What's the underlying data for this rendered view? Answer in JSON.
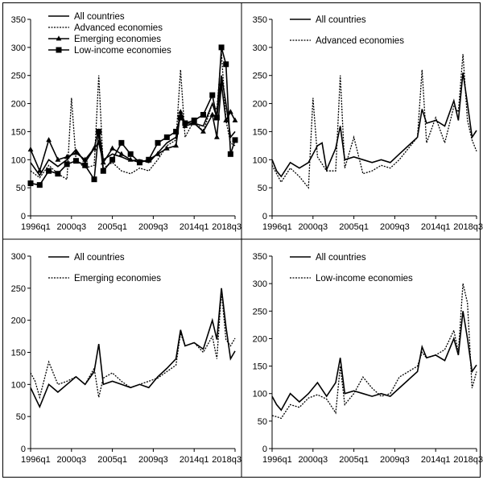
{
  "chart_data": [
    {
      "type": "line",
      "panel": "top-left",
      "ylim": [
        0,
        350
      ],
      "yticks": [
        0,
        50,
        100,
        150,
        200,
        250,
        300,
        350
      ],
      "xticks": [
        "1996q1",
        "2000q3",
        "2005q1",
        "2009q3",
        "2014q1",
        "2018q3"
      ],
      "legend_position": "top-left",
      "series": [
        {
          "name": "All countries",
          "style": "solid",
          "marker": "none",
          "x": [
            "1996q1",
            "1997q1",
            "1998q1",
            "1999q1",
            "2000q1",
            "2001q1",
            "2002q1",
            "2003q1",
            "2003q3",
            "2004q1",
            "2005q1",
            "2006q1",
            "2007q1",
            "2008q1",
            "2009q1",
            "2010q1",
            "2011q1",
            "2012q1",
            "2012q3",
            "2013q1",
            "2014q1",
            "2015q1",
            "2016q1",
            "2016q3",
            "2017q1",
            "2017q3",
            "2018q1",
            "2018q3"
          ],
          "y": [
            95,
            72,
            100,
            88,
            100,
            118,
            95,
            120,
            155,
            100,
            110,
            105,
            98,
            100,
            95,
            112,
            130,
            140,
            185,
            165,
            165,
            160,
            200,
            175,
            250,
            200,
            140,
            150
          ]
        },
        {
          "name": "Advanced economies",
          "style": "dotted",
          "marker": "none",
          "x": [
            "1996q1",
            "1997q1",
            "1998q1",
            "1999q1",
            "2000q1",
            "2000q3",
            "2001q1",
            "2002q1",
            "2003q1",
            "2003q3",
            "2004q1",
            "2005q1",
            "2006q1",
            "2007q1",
            "2008q1",
            "2009q1",
            "2010q1",
            "2011q1",
            "2012q1",
            "2012q3",
            "2013q1",
            "2014q1",
            "2015q1",
            "2016q1",
            "2016q3",
            "2017q1",
            "2017q3",
            "2018q1",
            "2018q3"
          ],
          "y": [
            80,
            68,
            90,
            75,
            65,
            210,
            100,
            85,
            90,
            250,
            85,
            95,
            80,
            75,
            85,
            80,
            100,
            125,
            135,
            260,
            140,
            170,
            150,
            200,
            190,
            290,
            170,
            130,
            125
          ]
        },
        {
          "name": "Emerging economies",
          "style": "solid",
          "marker": "triangle",
          "x": [
            "1996q1",
            "1997q1",
            "1998q1",
            "1999q1",
            "2000q1",
            "2001q1",
            "2002q1",
            "2003q1",
            "2003q3",
            "2004q1",
            "2005q1",
            "2006q1",
            "2007q1",
            "2008q1",
            "2009q1",
            "2010q1",
            "2011q1",
            "2012q1",
            "2012q3",
            "2013q1",
            "2014q1",
            "2015q1",
            "2016q1",
            "2016q3",
            "2017q1",
            "2017q3",
            "2018q1",
            "2018q3"
          ],
          "y": [
            118,
            80,
            135,
            100,
            105,
            112,
            100,
            120,
            130,
            95,
            120,
            110,
            100,
            95,
            100,
            110,
            120,
            125,
            185,
            160,
            165,
            150,
            180,
            140,
            235,
            170,
            185,
            170
          ]
        },
        {
          "name": "Low-income economies",
          "style": "solid",
          "marker": "square",
          "x": [
            "1996q1",
            "1997q1",
            "1998q1",
            "1999q1",
            "2000q1",
            "2001q1",
            "2002q1",
            "2003q1",
            "2003q3",
            "2004q1",
            "2005q1",
            "2006q1",
            "2007q1",
            "2008q1",
            "2009q1",
            "2010q1",
            "2011q1",
            "2012q1",
            "2012q3",
            "2013q1",
            "2014q1",
            "2015q1",
            "2016q1",
            "2016q3",
            "2017q1",
            "2017q3",
            "2018q1",
            "2018q3"
          ],
          "y": [
            58,
            55,
            80,
            75,
            92,
            98,
            90,
            65,
            150,
            80,
            100,
            130,
            110,
            95,
            100,
            130,
            140,
            150,
            175,
            165,
            170,
            180,
            215,
            175,
            300,
            270,
            110,
            135
          ]
        }
      ]
    },
    {
      "type": "line",
      "panel": "top-right",
      "ylim": [
        0,
        350
      ],
      "yticks": [
        0,
        50,
        100,
        150,
        200,
        250,
        300,
        350
      ],
      "xticks": [
        "1996q1",
        "2000q3",
        "2005q1",
        "2009q3",
        "2014q1",
        "2018q3"
      ],
      "legend_position": "top-center",
      "series": [
        {
          "name": "All countries",
          "style": "solid",
          "x": [
            "1996q1",
            "1996q3",
            "1997q1",
            "1998q1",
            "1999q1",
            "2000q1",
            "2001q1",
            "2001q3",
            "2002q1",
            "2003q1",
            "2003q3",
            "2004q1",
            "2005q1",
            "2006q1",
            "2007q1",
            "2008q1",
            "2009q1",
            "2010q1",
            "2011q1",
            "2012q1",
            "2012q3",
            "2013q1",
            "2014q1",
            "2015q1",
            "2016q1",
            "2016q3",
            "2017q1",
            "2017q3",
            "2018q1",
            "2018q3"
          ],
          "y": [
            100,
            80,
            70,
            95,
            85,
            95,
            125,
            130,
            82,
            120,
            160,
            100,
            105,
            100,
            95,
            100,
            95,
            110,
            125,
            140,
            190,
            165,
            170,
            160,
            205,
            170,
            255,
            200,
            140,
            152
          ]
        },
        {
          "name": "Advanced economies",
          "style": "dotted",
          "x": [
            "1996q1",
            "1997q1",
            "1998q1",
            "1999q1",
            "2000q1",
            "2000q3",
            "2001q1",
            "2002q1",
            "2003q1",
            "2003q3",
            "2004q1",
            "2005q1",
            "2006q1",
            "2007q1",
            "2008q1",
            "2009q1",
            "2010q1",
            "2011q1",
            "2012q1",
            "2012q3",
            "2013q1",
            "2014q1",
            "2015q1",
            "2016q1",
            "2016q3",
            "2017q1",
            "2017q3",
            "2018q1",
            "2018q3"
          ],
          "y": [
            90,
            60,
            85,
            70,
            50,
            210,
            105,
            80,
            80,
            250,
            85,
            140,
            75,
            80,
            90,
            85,
            100,
            120,
            140,
            260,
            130,
            175,
            130,
            195,
            185,
            288,
            170,
            135,
            115
          ]
        }
      ]
    },
    {
      "type": "line",
      "panel": "bottom-left",
      "ylim": [
        0,
        300
      ],
      "yticks": [
        0,
        50,
        100,
        150,
        200,
        250,
        300
      ],
      "xticks": [
        "1996q1",
        "2000q3",
        "2005q1",
        "2009q3",
        "2014q1",
        "2018q3"
      ],
      "legend_position": "top-center",
      "series": [
        {
          "name": "All countries",
          "style": "solid",
          "x": [
            "1996q1",
            "1996q3",
            "1997q1",
            "1998q1",
            "1999q1",
            "2000q1",
            "2001q1",
            "2002q1",
            "2003q1",
            "2003q3",
            "2004q1",
            "2005q1",
            "2006q1",
            "2007q1",
            "2008q1",
            "2009q1",
            "2010q1",
            "2011q1",
            "2012q1",
            "2012q3",
            "2013q1",
            "2014q1",
            "2015q1",
            "2016q1",
            "2016q3",
            "2017q1",
            "2017q3",
            "2018q1",
            "2018q3"
          ],
          "y": [
            95,
            80,
            65,
            100,
            88,
            100,
            112,
            100,
            120,
            163,
            100,
            105,
            100,
            95,
            100,
            95,
            112,
            125,
            140,
            185,
            160,
            165,
            155,
            200,
            170,
            250,
            190,
            140,
            152
          ]
        },
        {
          "name": "Emerging economies",
          "style": "dotted",
          "x": [
            "1996q1",
            "1996q3",
            "1997q1",
            "1998q1",
            "1999q1",
            "2000q1",
            "2001q1",
            "2002q1",
            "2003q1",
            "2003q3",
            "2004q1",
            "2005q1",
            "2006q1",
            "2007q1",
            "2008q1",
            "2009q1",
            "2010q1",
            "2011q1",
            "2012q1",
            "2012q3",
            "2013q1",
            "2014q1",
            "2015q1",
            "2016q1",
            "2016q3",
            "2017q1",
            "2017q3",
            "2018q1",
            "2018q3"
          ],
          "y": [
            118,
            105,
            80,
            135,
            100,
            105,
            112,
            100,
            125,
            80,
            110,
            118,
            105,
            95,
            100,
            105,
            110,
            120,
            130,
            180,
            160,
            165,
            150,
            175,
            140,
            245,
            170,
            160,
            172
          ]
        }
      ]
    },
    {
      "type": "line",
      "panel": "bottom-right",
      "ylim": [
        0,
        350
      ],
      "yticks": [
        0,
        50,
        100,
        150,
        200,
        250,
        300,
        350
      ],
      "xticks": [
        "1996q1",
        "2000q3",
        "2005q1",
        "2009q3",
        "2014q1",
        "2018q3"
      ],
      "legend_position": "top-center",
      "series": [
        {
          "name": "All countries",
          "style": "solid",
          "x": [
            "1996q1",
            "1996q3",
            "1997q1",
            "1998q1",
            "1999q1",
            "2000q1",
            "2001q1",
            "2002q1",
            "2003q1",
            "2003q3",
            "2004q1",
            "2005q1",
            "2006q1",
            "2007q1",
            "2008q1",
            "2009q1",
            "2010q1",
            "2011q1",
            "2012q1",
            "2012q3",
            "2013q1",
            "2014q1",
            "2015q1",
            "2016q1",
            "2016q3",
            "2017q1",
            "2017q3",
            "2018q1",
            "2018q3"
          ],
          "y": [
            95,
            80,
            70,
            100,
            85,
            100,
            120,
            95,
            120,
            165,
            100,
            105,
            100,
            95,
            100,
            95,
            110,
            125,
            140,
            185,
            165,
            170,
            160,
            200,
            170,
            250,
            200,
            140,
            152
          ]
        },
        {
          "name": "Low-income economies",
          "style": "dotted",
          "x": [
            "1996q1",
            "1996q3",
            "1997q1",
            "1998q1",
            "1999q1",
            "2000q1",
            "2001q1",
            "2002q1",
            "2003q1",
            "2003q3",
            "2004q1",
            "2005q1",
            "2006q1",
            "2007q1",
            "2008q1",
            "2009q1",
            "2010q1",
            "2011q1",
            "2012q1",
            "2012q3",
            "2013q1",
            "2014q1",
            "2015q1",
            "2016q1",
            "2016q3",
            "2017q1",
            "2017q3",
            "2018q1",
            "2018q3"
          ],
          "y": [
            60,
            58,
            55,
            80,
            75,
            92,
            98,
            90,
            65,
            150,
            80,
            100,
            130,
            110,
            95,
            100,
            130,
            140,
            150,
            175,
            165,
            170,
            180,
            215,
            175,
            300,
            265,
            110,
            140
          ]
        }
      ]
    }
  ]
}
